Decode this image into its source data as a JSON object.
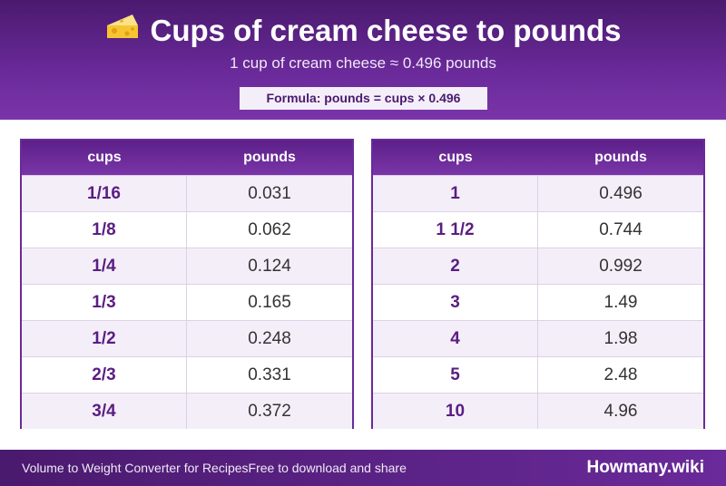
{
  "header": {
    "title": "Cups of cream cheese to pounds",
    "subtitle": "1 cup of cream cheese ≈ 0.496 pounds",
    "formula": "Formula: pounds = cups × 0.496"
  },
  "tables": [
    {
      "col1": "cups",
      "col2": "pounds",
      "rows": [
        {
          "cups": "1/16",
          "pounds": "0.031"
        },
        {
          "cups": "1/8",
          "pounds": "0.062"
        },
        {
          "cups": "1/4",
          "pounds": "0.124"
        },
        {
          "cups": "1/3",
          "pounds": "0.165"
        },
        {
          "cups": "1/2",
          "pounds": "0.248"
        },
        {
          "cups": "2/3",
          "pounds": "0.331"
        },
        {
          "cups": "3/4",
          "pounds": "0.372"
        }
      ]
    },
    {
      "col1": "cups",
      "col2": "pounds",
      "rows": [
        {
          "cups": "1",
          "pounds": "0.496"
        },
        {
          "cups": "1 1/2",
          "pounds": "0.744"
        },
        {
          "cups": "2",
          "pounds": "0.992"
        },
        {
          "cups": "3",
          "pounds": "1.49"
        },
        {
          "cups": "4",
          "pounds": "1.98"
        },
        {
          "cups": "5",
          "pounds": "2.48"
        },
        {
          "cups": "10",
          "pounds": "4.96"
        }
      ]
    }
  ],
  "footer": {
    "left_text_1": "Volume to Weight Converter for Recipes",
    "left_text_2": "Free to download and share",
    "brand": "Howmany.wiki"
  },
  "icons": {
    "title_icon": "cheese-icon"
  },
  "colors": {
    "accent": "#6a2a9a",
    "dark": "#4a1a6e",
    "row_alt": "#f4eef9"
  }
}
